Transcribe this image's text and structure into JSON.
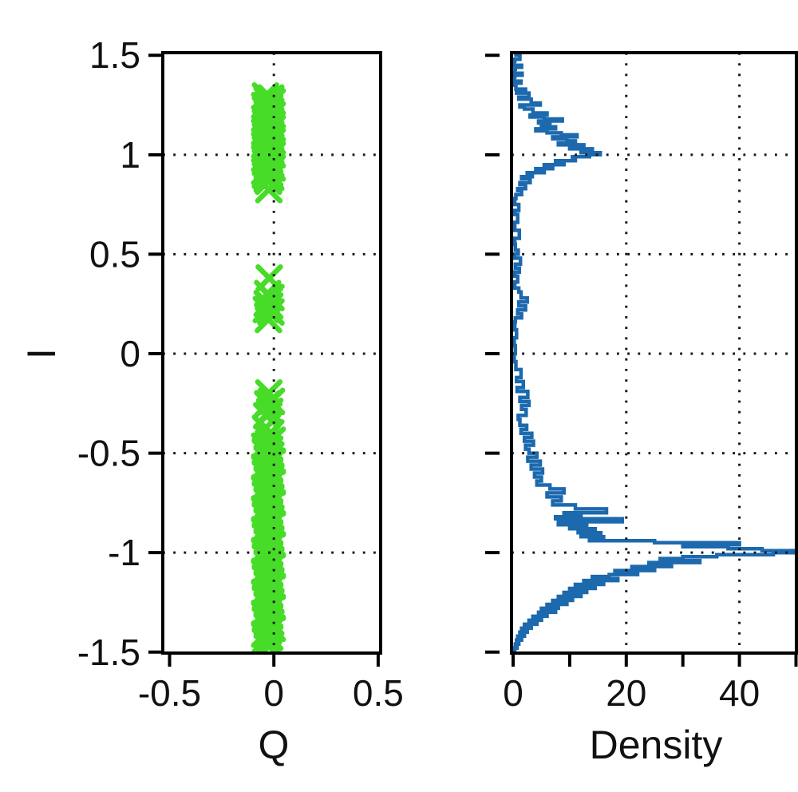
{
  "figure": {
    "background": "#ffffff",
    "text_color": "#111111",
    "axis_color": "#000000",
    "grid_color": "#161616"
  },
  "chart_data": [
    {
      "type": "scatter",
      "name": "constellation",
      "xlabel": "Q",
      "ylabel": "I",
      "xlim": [
        -0.53,
        0.51
      ],
      "ylim": [
        -1.5,
        1.5
      ],
      "x_ticks": [
        -0.5,
        0,
        0.5
      ],
      "x_tick_labels": [
        "-0.5",
        "0",
        "0.5"
      ],
      "y_ticks": [
        1.5,
        1,
        0.5,
        0,
        -0.5,
        -1,
        -1.5
      ],
      "y_tick_labels": [
        "1.5",
        "1",
        "0.5",
        "0",
        "-0.5",
        "-1",
        "-1.5"
      ],
      "grid": {
        "x": [
          0
        ],
        "y": [
          1,
          0.5,
          0,
          -0.5,
          -1
        ],
        "style": "dotted"
      },
      "marker": "x",
      "marker_color": "#46dc28",
      "point_format": "[Q, I]",
      "points": [
        [
          -0.04,
          1.295
        ],
        [
          -0.015,
          1.285
        ],
        [
          -0.032,
          1.276
        ],
        [
          -0.008,
          1.266
        ],
        [
          -0.026,
          1.257
        ],
        [
          -0.044,
          1.247
        ],
        [
          -0.02,
          1.238
        ],
        [
          -0.04,
          1.228
        ],
        [
          -0.015,
          1.219
        ],
        [
          -0.032,
          1.209
        ],
        [
          -0.008,
          1.2
        ],
        [
          -0.026,
          1.19
        ],
        [
          -0.044,
          1.181
        ],
        [
          -0.02,
          1.171
        ],
        [
          -0.04,
          1.162
        ],
        [
          -0.015,
          1.152
        ],
        [
          -0.032,
          1.143
        ],
        [
          -0.008,
          1.133
        ],
        [
          -0.026,
          1.124
        ],
        [
          -0.044,
          1.114
        ],
        [
          -0.02,
          1.105
        ],
        [
          -0.04,
          1.095
        ],
        [
          -0.015,
          1.086
        ],
        [
          -0.032,
          1.076
        ],
        [
          -0.008,
          1.067
        ],
        [
          -0.026,
          1.057
        ],
        [
          -0.044,
          1.048
        ],
        [
          -0.02,
          1.038
        ],
        [
          -0.04,
          1.029
        ],
        [
          -0.015,
          1.019
        ],
        [
          -0.032,
          1.01
        ],
        [
          -0.008,
          1.0
        ],
        [
          -0.026,
          0.991
        ],
        [
          -0.044,
          0.981
        ],
        [
          -0.02,
          0.972
        ],
        [
          -0.04,
          0.962
        ],
        [
          -0.015,
          0.953
        ],
        [
          -0.032,
          0.943
        ],
        [
          -0.008,
          0.934
        ],
        [
          -0.026,
          0.924
        ],
        [
          -0.044,
          0.915
        ],
        [
          -0.02,
          0.905
        ],
        [
          -0.04,
          0.896
        ],
        [
          -0.015,
          0.886
        ],
        [
          -0.032,
          0.877
        ],
        [
          -0.026,
          0.867
        ],
        [
          -0.024,
          0.825
        ],
        [
          -0.022,
          0.38
        ],
        [
          -0.03,
          0.302
        ],
        [
          -0.014,
          0.282
        ],
        [
          -0.032,
          0.252
        ],
        [
          -0.02,
          0.24
        ],
        [
          -0.036,
          0.222
        ],
        [
          -0.014,
          0.21
        ],
        [
          -0.026,
          0.172
        ],
        [
          -0.024,
          -0.198
        ],
        [
          -0.012,
          -0.24
        ],
        [
          -0.03,
          -0.252
        ],
        [
          -0.02,
          -0.29
        ],
        [
          -0.034,
          -0.312
        ],
        [
          -0.04,
          -0.375
        ],
        [
          -0.015,
          -0.398
        ],
        [
          -0.032,
          -0.42
        ],
        [
          -0.008,
          -0.435
        ],
        [
          -0.026,
          -0.45
        ],
        [
          -0.044,
          -0.465
        ],
        [
          -0.02,
          -0.48
        ],
        [
          -0.04,
          -0.495
        ],
        [
          -0.015,
          -0.51
        ],
        [
          -0.032,
          -0.525
        ],
        [
          -0.008,
          -0.54
        ],
        [
          -0.026,
          -0.555
        ],
        [
          -0.044,
          -0.57
        ],
        [
          -0.02,
          -0.585
        ],
        [
          -0.04,
          -0.6
        ],
        [
          -0.015,
          -0.615
        ],
        [
          -0.032,
          -0.63
        ],
        [
          -0.008,
          -0.645
        ],
        [
          -0.026,
          -0.66
        ],
        [
          -0.044,
          -0.675
        ],
        [
          -0.02,
          -0.69
        ],
        [
          -0.04,
          -0.705
        ],
        [
          -0.015,
          -0.72
        ],
        [
          -0.032,
          -0.735
        ],
        [
          -0.008,
          -0.75
        ],
        [
          -0.026,
          -0.765
        ],
        [
          -0.044,
          -0.78
        ],
        [
          -0.02,
          -0.795
        ],
        [
          -0.04,
          -0.81
        ],
        [
          -0.015,
          -0.825
        ],
        [
          -0.032,
          -0.84
        ],
        [
          -0.008,
          -0.855
        ],
        [
          -0.026,
          -0.87
        ],
        [
          -0.044,
          -0.885
        ],
        [
          -0.02,
          -0.9
        ],
        [
          -0.04,
          -0.915
        ],
        [
          -0.015,
          -0.93
        ],
        [
          -0.032,
          -0.945
        ],
        [
          -0.008,
          -0.96
        ],
        [
          -0.026,
          -0.975
        ],
        [
          -0.044,
          -0.99
        ],
        [
          -0.02,
          -1.005
        ],
        [
          -0.04,
          -1.02
        ],
        [
          -0.015,
          -1.035
        ],
        [
          -0.032,
          -1.05
        ],
        [
          -0.008,
          -1.065
        ],
        [
          -0.026,
          -1.08
        ],
        [
          -0.044,
          -1.095
        ],
        [
          -0.02,
          -1.11
        ],
        [
          -0.04,
          -1.125
        ],
        [
          -0.015,
          -1.14
        ],
        [
          -0.032,
          -1.155
        ],
        [
          -0.008,
          -1.17
        ],
        [
          -0.026,
          -1.185
        ],
        [
          -0.044,
          -1.2
        ],
        [
          -0.02,
          -1.215
        ],
        [
          -0.04,
          -1.23
        ],
        [
          -0.015,
          -1.245
        ],
        [
          -0.032,
          -1.26
        ],
        [
          -0.008,
          -1.275
        ],
        [
          -0.026,
          -1.29
        ],
        [
          -0.044,
          -1.305
        ],
        [
          -0.02,
          -1.32
        ],
        [
          -0.04,
          -1.335
        ],
        [
          -0.015,
          -1.35
        ],
        [
          -0.032,
          -1.365
        ],
        [
          -0.008,
          -1.38
        ],
        [
          -0.026,
          -1.395
        ],
        [
          -0.044,
          -1.41
        ],
        [
          -0.02,
          -1.425
        ],
        [
          -0.04,
          -1.44
        ],
        [
          -0.026,
          -1.452
        ],
        [
          -0.032,
          -1.462
        ],
        [
          -0.022,
          -1.47
        ]
      ]
    },
    {
      "type": "line",
      "name": "marginal-density",
      "xlabel": "Density",
      "ylabel": "",
      "xlim": [
        0,
        50
      ],
      "ylim": [
        -1.5,
        1.5
      ],
      "x_ticks": [
        0,
        10,
        20,
        30,
        40,
        50
      ],
      "x_tick_labels": [
        "0",
        "",
        "20",
        "",
        "40",
        ""
      ],
      "y_ticks": [
        1.5,
        1,
        0.5,
        0,
        -0.5,
        -1,
        -1.5
      ],
      "y_tick_labels": [
        "",
        "",
        "",
        "",
        "",
        "",
        ""
      ],
      "grid": {
        "x": [
          20,
          40
        ],
        "y": [
          1,
          0.5,
          0,
          -0.5,
          -1
        ],
        "style": "dotted"
      },
      "line_color": "#1c69ae",
      "point_format": "[I, Density]",
      "points": [
        [
          1.5,
          0.2
        ],
        [
          1.48,
          1.2
        ],
        [
          1.47,
          0.3
        ],
        [
          1.45,
          0.2
        ],
        [
          1.44,
          1.5
        ],
        [
          1.43,
          0.4
        ],
        [
          1.41,
          0.3
        ],
        [
          1.4,
          1.6
        ],
        [
          1.39,
          0.3
        ],
        [
          1.37,
          0.2
        ],
        [
          1.36,
          1.4
        ],
        [
          1.35,
          0.3
        ],
        [
          1.33,
          0.5
        ],
        [
          1.32,
          2.2
        ],
        [
          1.31,
          0.6
        ],
        [
          1.29,
          2.8
        ],
        [
          1.28,
          1.0
        ],
        [
          1.26,
          3.2
        ],
        [
          1.25,
          4.8
        ],
        [
          1.24,
          1.2
        ],
        [
          1.23,
          2.0
        ],
        [
          1.21,
          3.5
        ],
        [
          1.2,
          6.0
        ],
        [
          1.19,
          3.0
        ],
        [
          1.18,
          5.5
        ],
        [
          1.17,
          8.7
        ],
        [
          1.16,
          4.5
        ],
        [
          1.15,
          6.5
        ],
        [
          1.14,
          5.0
        ],
        [
          1.13,
          7.5
        ],
        [
          1.12,
          4.0
        ],
        [
          1.11,
          6.0
        ],
        [
          1.1,
          8.5
        ],
        [
          1.09,
          11.3
        ],
        [
          1.08,
          7.0
        ],
        [
          1.07,
          9.5
        ],
        [
          1.06,
          11.0
        ],
        [
          1.05,
          8.0
        ],
        [
          1.04,
          12.5
        ],
        [
          1.03,
          10.0
        ],
        [
          1.02,
          14.0
        ],
        [
          1.01,
          12.0
        ],
        [
          1.0,
          15.4
        ],
        [
          0.99,
          13.5
        ],
        [
          0.98,
          10.5
        ],
        [
          0.97,
          11.0
        ],
        [
          0.96,
          7.5
        ],
        [
          0.95,
          9.0
        ],
        [
          0.94,
          5.5
        ],
        [
          0.93,
          7.0
        ],
        [
          0.92,
          4.0
        ],
        [
          0.91,
          5.5
        ],
        [
          0.9,
          2.5
        ],
        [
          0.89,
          3.4
        ],
        [
          0.88,
          1.5
        ],
        [
          0.86,
          3.0
        ],
        [
          0.85,
          1.2
        ],
        [
          0.83,
          2.2
        ],
        [
          0.82,
          0.8
        ],
        [
          0.8,
          1.5
        ],
        [
          0.78,
          0.5
        ],
        [
          0.75,
          0.3
        ],
        [
          0.72,
          1.0
        ],
        [
          0.7,
          0.3
        ],
        [
          0.66,
          0.8
        ],
        [
          0.62,
          0.3
        ],
        [
          0.58,
          1.1
        ],
        [
          0.55,
          0.3
        ],
        [
          0.52,
          0.4
        ],
        [
          0.5,
          0.9
        ],
        [
          0.48,
          0.3
        ],
        [
          0.45,
          1.3
        ],
        [
          0.43,
          0.4
        ],
        [
          0.41,
          1.1
        ],
        [
          0.39,
          0.3
        ],
        [
          0.36,
          0.8
        ],
        [
          0.33,
          0.3
        ],
        [
          0.31,
          1.0
        ],
        [
          0.28,
          1.4
        ],
        [
          0.26,
          2.5
        ],
        [
          0.24,
          1.0
        ],
        [
          0.22,
          2.2
        ],
        [
          0.2,
          0.8
        ],
        [
          0.18,
          1.5
        ],
        [
          0.16,
          0.4
        ],
        [
          0.12,
          0.3
        ],
        [
          0.08,
          0.6
        ],
        [
          0.04,
          0.2
        ],
        [
          0.0,
          0.4
        ],
        [
          -0.04,
          0.2
        ],
        [
          -0.08,
          0.5
        ],
        [
          -0.12,
          1.4
        ],
        [
          -0.14,
          0.6
        ],
        [
          -0.17,
          1.8
        ],
        [
          -0.19,
          0.7
        ],
        [
          -0.22,
          2.6
        ],
        [
          -0.24,
          1.2
        ],
        [
          -0.26,
          2.8
        ],
        [
          -0.28,
          1.5
        ],
        [
          -0.31,
          2.3
        ],
        [
          -0.33,
          0.9
        ],
        [
          -0.36,
          1.2
        ],
        [
          -0.38,
          2.4
        ],
        [
          -0.4,
          1.4
        ],
        [
          -0.42,
          3.3
        ],
        [
          -0.44,
          2.0
        ],
        [
          -0.46,
          3.6
        ],
        [
          -0.48,
          2.2
        ],
        [
          -0.5,
          2.8
        ],
        [
          -0.52,
          4.2
        ],
        [
          -0.54,
          2.6
        ],
        [
          -0.56,
          4.8
        ],
        [
          -0.58,
          3.2
        ],
        [
          -0.6,
          5.2
        ],
        [
          -0.62,
          3.8
        ],
        [
          -0.64,
          5.0
        ],
        [
          -0.66,
          4.2
        ],
        [
          -0.68,
          6.5
        ],
        [
          -0.7,
          9.0
        ],
        [
          -0.72,
          6.0
        ],
        [
          -0.74,
          8.5
        ],
        [
          -0.76,
          7.0
        ],
        [
          -0.78,
          11.0
        ],
        [
          -0.8,
          16.5
        ],
        [
          -0.81,
          9.0
        ],
        [
          -0.82,
          12.0
        ],
        [
          -0.83,
          7.5
        ],
        [
          -0.845,
          19.3
        ],
        [
          -0.86,
          8.0
        ],
        [
          -0.87,
          13.0
        ],
        [
          -0.88,
          10.0
        ],
        [
          -0.89,
          14.5
        ],
        [
          -0.9,
          11.5
        ],
        [
          -0.91,
          15.5
        ],
        [
          -0.92,
          12.0
        ],
        [
          -0.93,
          16.0
        ],
        [
          -0.94,
          13.5
        ],
        [
          -0.95,
          25.0
        ],
        [
          -0.96,
          40.0
        ],
        [
          -0.97,
          30.0
        ],
        [
          -0.98,
          38.0
        ],
        [
          -0.99,
          44.0
        ],
        [
          -1.0,
          50.0
        ],
        [
          -1.01,
          46.0
        ],
        [
          -1.02,
          36.0
        ],
        [
          -1.03,
          30.0
        ],
        [
          -1.04,
          26.0
        ],
        [
          -1.05,
          33.0
        ],
        [
          -1.06,
          24.0
        ],
        [
          -1.07,
          28.0
        ],
        [
          -1.08,
          21.0
        ],
        [
          -1.09,
          25.0
        ],
        [
          -1.1,
          18.0
        ],
        [
          -1.11,
          22.0
        ],
        [
          -1.12,
          17.0
        ],
        [
          -1.13,
          14.0
        ],
        [
          -1.14,
          18.5
        ],
        [
          -1.15,
          12.5
        ],
        [
          -1.16,
          16.0
        ],
        [
          -1.17,
          11.0
        ],
        [
          -1.18,
          14.5
        ],
        [
          -1.19,
          10.0
        ],
        [
          -1.2,
          13.0
        ],
        [
          -1.21,
          9.0
        ],
        [
          -1.22,
          12.0
        ],
        [
          -1.23,
          8.0
        ],
        [
          -1.24,
          10.5
        ],
        [
          -1.25,
          7.0
        ],
        [
          -1.26,
          9.5
        ],
        [
          -1.27,
          6.0
        ],
        [
          -1.28,
          8.0
        ],
        [
          -1.29,
          5.0
        ],
        [
          -1.3,
          7.5
        ],
        [
          -1.31,
          4.5
        ],
        [
          -1.32,
          6.0
        ],
        [
          -1.33,
          3.5
        ],
        [
          -1.34,
          5.0
        ],
        [
          -1.35,
          2.8
        ],
        [
          -1.36,
          4.2
        ],
        [
          -1.37,
          2.0
        ],
        [
          -1.38,
          3.2
        ],
        [
          -1.39,
          1.5
        ],
        [
          -1.4,
          2.5
        ],
        [
          -1.41,
          1.2
        ],
        [
          -1.42,
          2.0
        ],
        [
          -1.43,
          0.8
        ],
        [
          -1.44,
          1.5
        ],
        [
          -1.45,
          0.6
        ],
        [
          -1.46,
          1.0
        ],
        [
          -1.47,
          0.4
        ],
        [
          -1.48,
          0.7
        ],
        [
          -1.49,
          0.3
        ],
        [
          -1.5,
          0.2
        ]
      ]
    }
  ]
}
